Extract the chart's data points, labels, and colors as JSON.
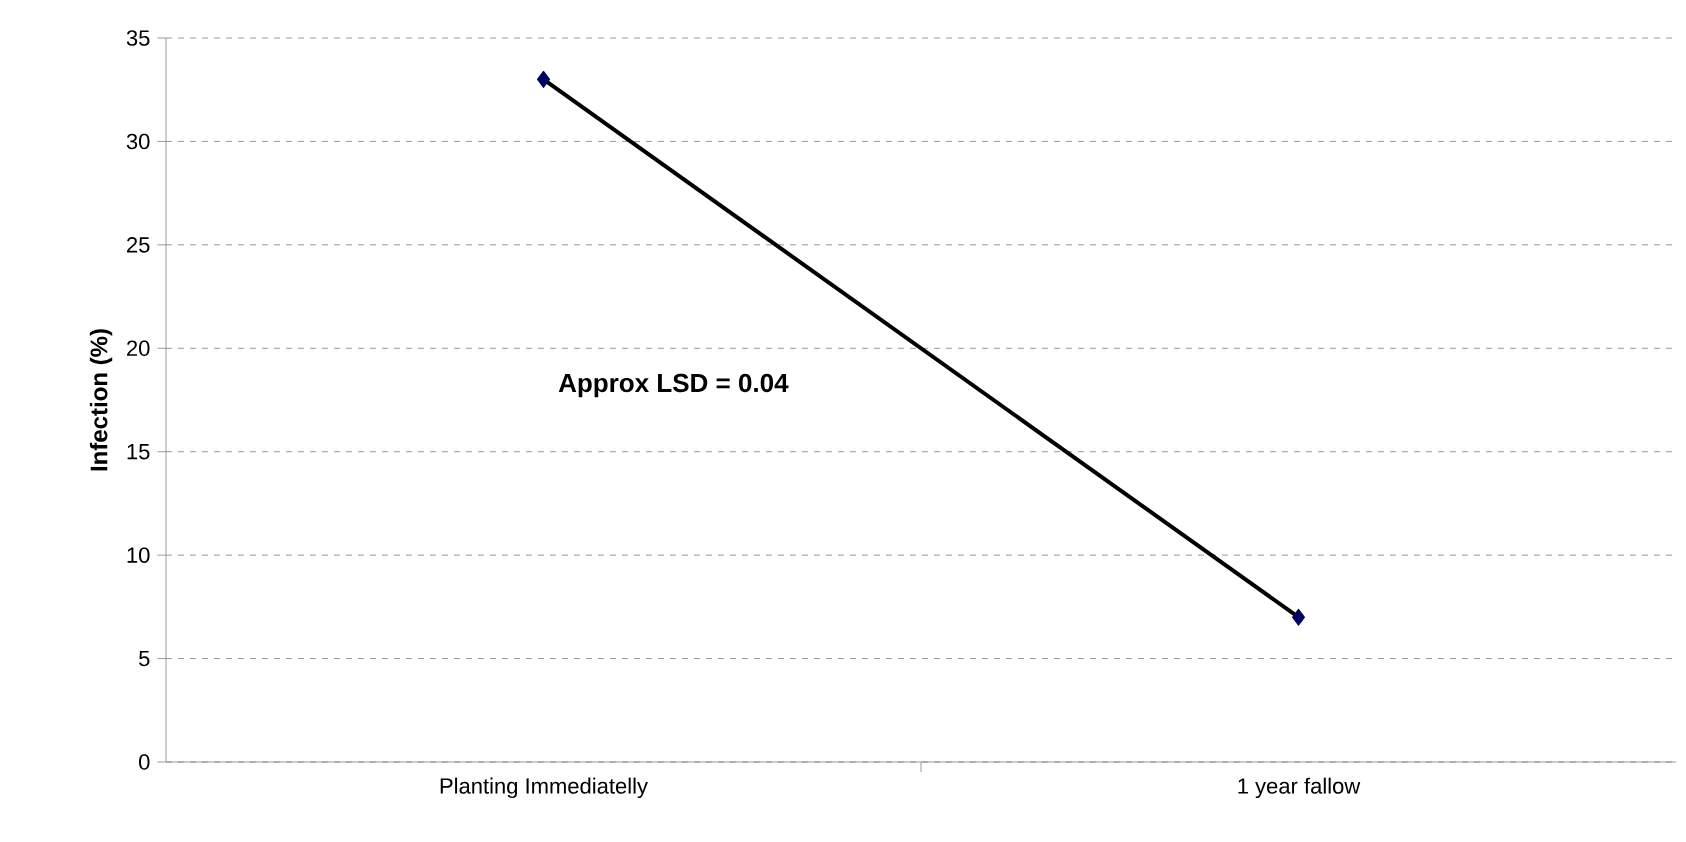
{
  "chart_data": {
    "type": "line",
    "ylabel": "Infection (%)",
    "categories": [
      "Planting Immediatelly",
      "1 year fallow"
    ],
    "series": [
      {
        "color": "#000000",
        "values": [
          33,
          7
        ]
      }
    ],
    "ylim": [
      0,
      35
    ],
    "yticks": [
      0,
      5,
      10,
      15,
      20,
      25,
      30,
      35
    ],
    "grid": "y",
    "marker": "diamond",
    "line_style": "solid",
    "annotations": [
      "Approx LSD = 0.04"
    ]
  }
}
